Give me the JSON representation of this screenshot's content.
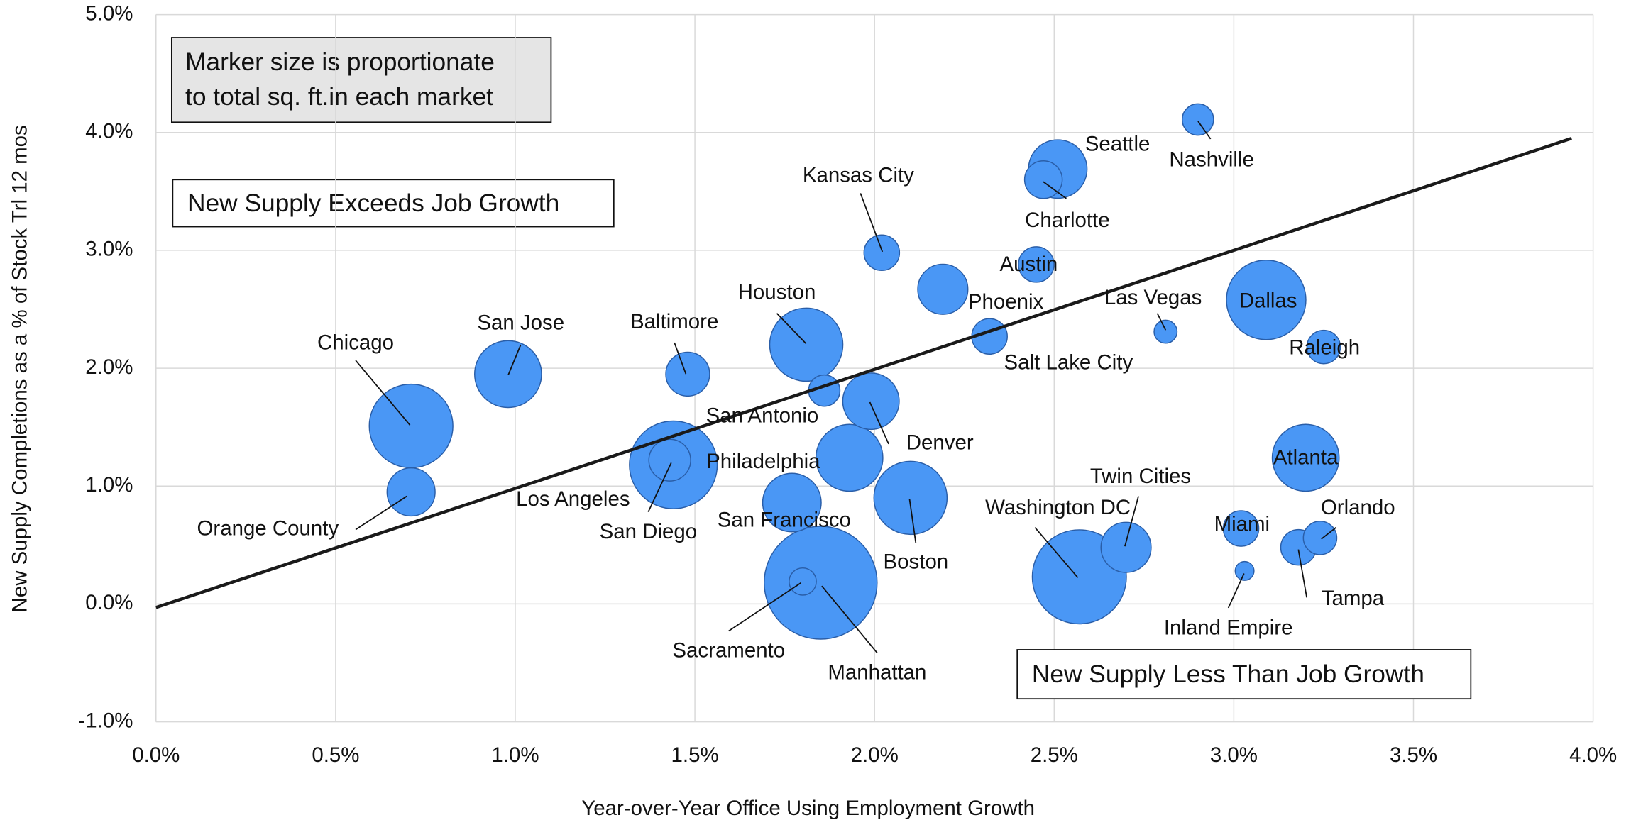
{
  "chart_data": {
    "type": "scatter",
    "x_label": "Year-over-Year Office Using Employment Growth",
    "y_label": "New Supply Completions as a % of Stock Trl 12 mos",
    "note": [
      "Marker size is proportionate",
      "to total sq. ft.in each market"
    ],
    "annotations": [
      "New Supply Exceeds Job Growth",
      "New Supply Less Than Job Growth"
    ],
    "color": "#4a97f5",
    "names": [
      "Chicago",
      "Orange County",
      "San Jose",
      "Baltimore",
      "Houston",
      "San Antonio",
      "Los Angeles",
      "San Diego",
      "Philadelphia",
      "San Francisco",
      "Denver",
      "Boston",
      "Manhattan",
      "Sacramento",
      "Kansas City",
      "Phoenix",
      "Salt Lake City",
      "Austin",
      "Charlotte",
      "Seattle",
      "Nashville",
      "Las Vegas",
      "Dallas",
      "Raleigh",
      "Atlanta",
      "Orlando",
      "Tampa",
      "Miami",
      "Inland Empire",
      "Washington DC",
      "Twin Cities"
    ],
    "x": [
      0.71,
      0.71,
      0.98,
      1.48,
      1.81,
      1.86,
      1.44,
      1.43,
      1.93,
      1.77,
      1.99,
      2.1,
      1.85,
      1.8,
      2.02,
      2.19,
      2.32,
      2.45,
      2.47,
      2.51,
      2.9,
      2.81,
      3.09,
      3.25,
      3.2,
      3.24,
      3.18,
      3.02,
      3.03,
      2.57,
      2.7
    ],
    "y": [
      1.51,
      0.95,
      1.95,
      1.95,
      2.2,
      1.81,
      1.18,
      1.22,
      1.24,
      0.86,
      1.72,
      0.9,
      0.18,
      0.19,
      2.98,
      2.67,
      2.27,
      2.88,
      3.6,
      3.69,
      4.11,
      2.31,
      2.58,
      2.18,
      1.24,
      0.56,
      0.48,
      0.64,
      0.28,
      0.23,
      0.48
    ],
    "sizes": [
      1600,
      529,
      1024,
      441,
      1225,
      225,
      1764,
      400,
      1024,
      784,
      729,
      1225,
      2916,
      169,
      289,
      576,
      289,
      289,
      324,
      784,
      225,
      121,
      1444,
      256,
      1024,
      256,
      289,
      289,
      81,
      2025,
      576
    ],
    "trendline": {
      "x": [
        0,
        3.94
      ],
      "y": [
        -0.03,
        3.95
      ]
    },
    "xlim": [
      0,
      4
    ],
    "xticks": [
      {
        "value": 0,
        "label": "0.0%"
      },
      {
        "value": 0.5,
        "label": "0.5%"
      },
      {
        "value": 1,
        "label": "1.0%"
      },
      {
        "value": 1.5,
        "label": "1.5%"
      },
      {
        "value": 2,
        "label": "2.0%"
      },
      {
        "value": 2.5,
        "label": "2.5%"
      },
      {
        "value": 3,
        "label": "3.0%"
      },
      {
        "value": 3.5,
        "label": "3.5%"
      },
      {
        "value": 4,
        "label": "4.0%"
      }
    ],
    "ylim": [
      -1,
      5
    ],
    "yticks": [
      {
        "value": -1,
        "label": "-1.0%"
      },
      {
        "value": 0,
        "label": "0.0%"
      },
      {
        "value": 1,
        "label": "1.0%"
      },
      {
        "value": 2,
        "label": "2.0%"
      },
      {
        "value": 3,
        "label": "3.0%"
      },
      {
        "value": 4,
        "label": "4.0%"
      },
      {
        "value": 5,
        "label": "5.0%"
      }
    ],
    "grid": true
  }
}
